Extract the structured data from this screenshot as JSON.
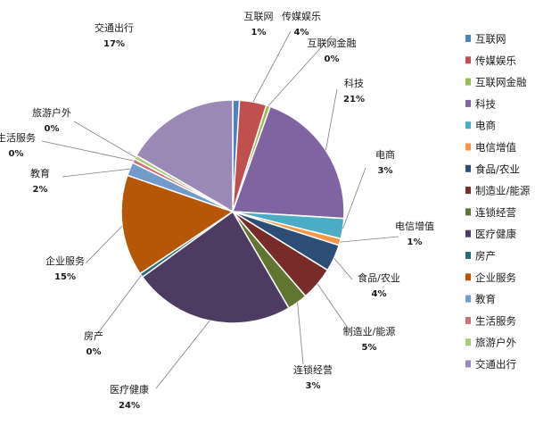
{
  "chart_data": {
    "type": "pie",
    "title": "",
    "legend_position": "right",
    "slices": [
      {
        "label": "互联网",
        "value": 1,
        "value_label": "1%",
        "color": "#4f81bd"
      },
      {
        "label": "传媒娱乐",
        "value": 4,
        "value_label": "4%",
        "color": "#c0504d"
      },
      {
        "label": "互联网金融",
        "value": 0,
        "value_label": "0%",
        "color": "#9bbb59"
      },
      {
        "label": "科技",
        "value": 21,
        "value_label": "21%",
        "color": "#8064a2"
      },
      {
        "label": "电商",
        "value": 3,
        "value_label": "3%",
        "color": "#4bacc6"
      },
      {
        "label": "电信增值",
        "value": 1,
        "value_label": "1%",
        "color": "#f79646"
      },
      {
        "label": "食品/农业",
        "value": 4,
        "value_label": "4%",
        "color": "#2c4d75"
      },
      {
        "label": "制造业/能源",
        "value": 5,
        "value_label": "5%",
        "color": "#772c2a"
      },
      {
        "label": "连锁经营",
        "value": 3,
        "value_label": "3%",
        "color": "#5f7530"
      },
      {
        "label": "医疗健康",
        "value": 24,
        "value_label": "24%",
        "color": "#4d3b62"
      },
      {
        "label": "房产",
        "value": 0,
        "value_label": "0%",
        "color": "#276a7c"
      },
      {
        "label": "企业服务",
        "value": 15,
        "value_label": "15%",
        "color": "#b65708"
      },
      {
        "label": "教育",
        "value": 2,
        "value_label": "2%",
        "color": "#729aca"
      },
      {
        "label": "生活服务",
        "value": 0,
        "value_label": "0%",
        "color": "#cd7371"
      },
      {
        "label": "旅游户外",
        "value": 0,
        "value_label": "0%",
        "color": "#afc97a"
      },
      {
        "label": "交通出行",
        "value": 17,
        "value_label": "17%",
        "color": "#9a88b6"
      }
    ]
  }
}
